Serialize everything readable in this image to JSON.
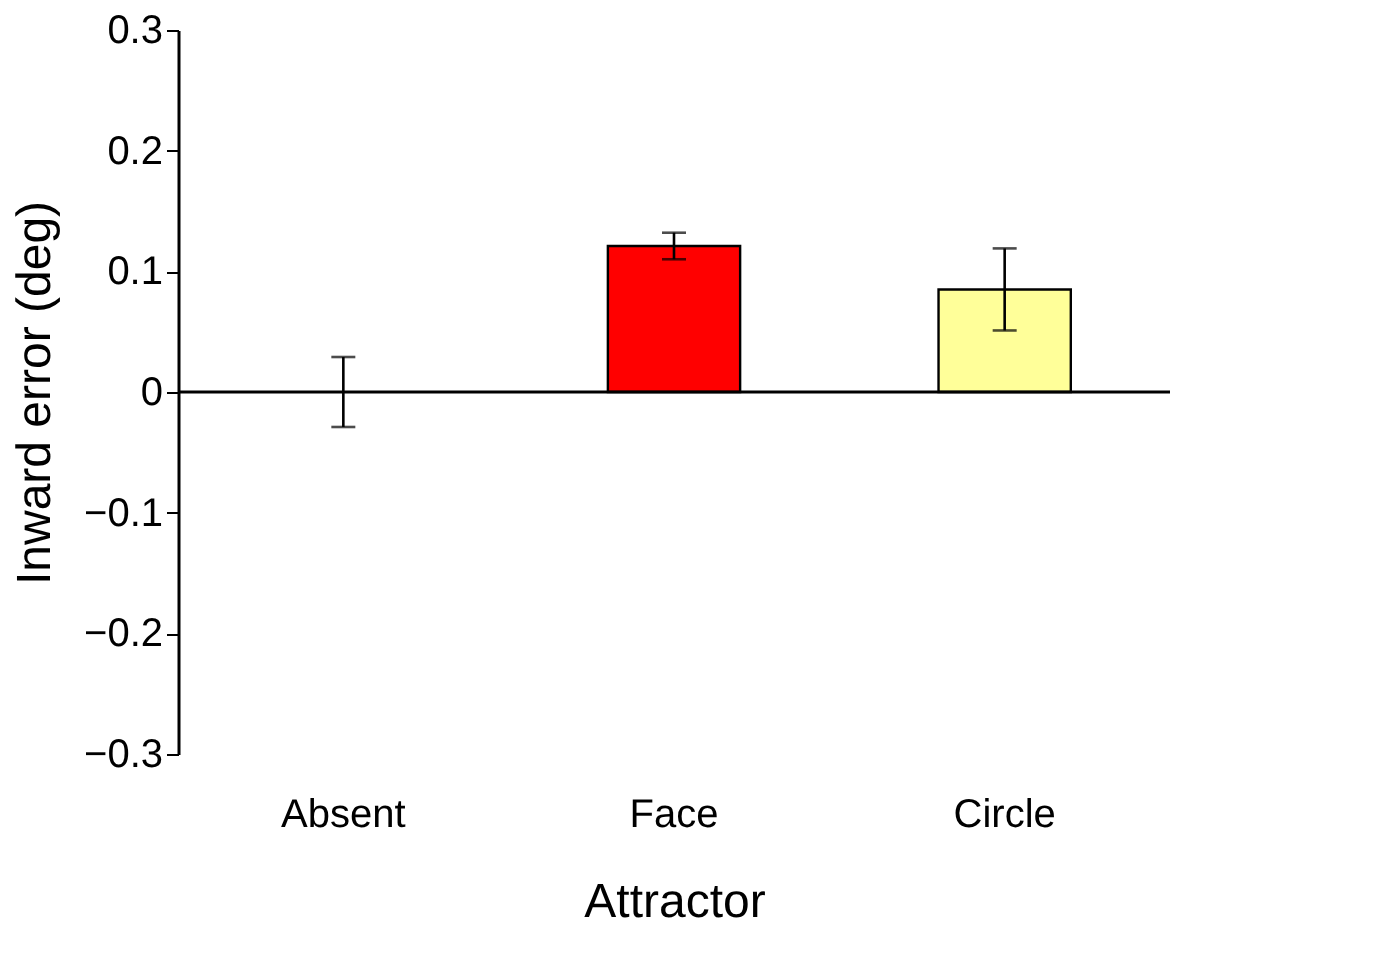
{
  "chart_data": {
    "type": "bar",
    "xlabel": "Attractor",
    "ylabel": "Inward error (deg)",
    "categories": [
      "Absent",
      "Face",
      "Circle"
    ],
    "values": [
      0,
      0.121,
      0.085
    ],
    "errors": [
      0.029,
      0.011,
      0.034
    ],
    "colors": [
      null,
      "#ff0000",
      "#ffff99"
    ],
    "ylim": [
      -0.3,
      0.3
    ],
    "yticks": [
      {
        "value": -0.3,
        "label": "−0.3"
      },
      {
        "value": -0.2,
        "label": "−0.2"
      },
      {
        "value": -0.1,
        "label": "−0.1"
      },
      0,
      0.1,
      0.2,
      0.3
    ],
    "ref_lines": [
      {
        "axis": "y",
        "value": 0,
        "color": "#000000"
      }
    ],
    "grid": false
  }
}
